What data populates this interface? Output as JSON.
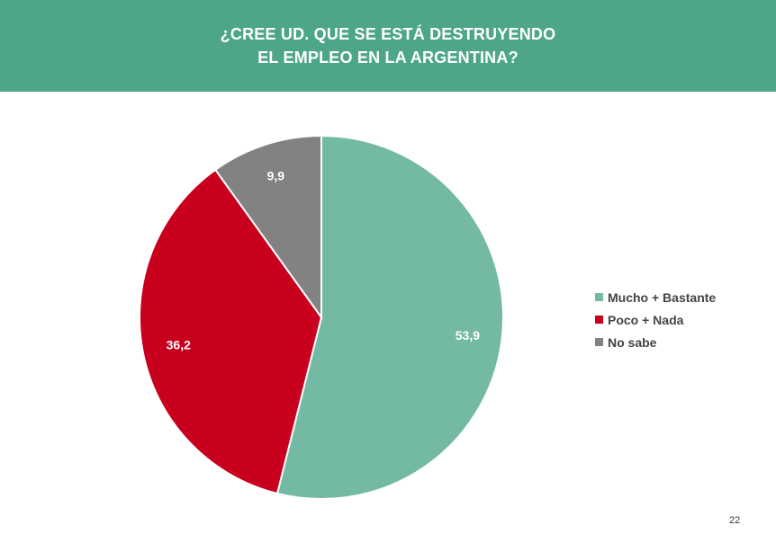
{
  "header": {
    "title_line1": "¿CREE UD. QUE SE ESTÁ DESTRUYENDO",
    "title_line2": "EL EMPLEO EN LA ARGENTINA?"
  },
  "colors": {
    "header_bg": "#4ea68a",
    "mucho": "#74b9a3",
    "poco": "#c8001e",
    "no_sabe": "#828282"
  },
  "chart_data": {
    "type": "pie",
    "title": "¿CREE UD. QUE SE ESTÁ DESTRUYENDO EL EMPLEO EN LA ARGENTINA?",
    "categories": [
      "Mucho + Bastante",
      "Poco + Nada",
      "No sabe"
    ],
    "values": [
      53.9,
      36.2,
      9.9
    ],
    "value_labels": [
      "53,9",
      "36,2",
      "9,9"
    ],
    "colors": [
      "#74b9a3",
      "#c8001e",
      "#828282"
    ],
    "start_angle": "12 o'clock",
    "direction": "clockwise",
    "legend_position": "right"
  },
  "legend": {
    "items": [
      {
        "label": "Mucho + Bastante",
        "color": "#74b9a3"
      },
      {
        "label": "Poco + Nada",
        "color": "#c8001e"
      },
      {
        "label": "No sabe",
        "color": "#828282"
      }
    ]
  },
  "footer": {
    "page_number": "22"
  }
}
